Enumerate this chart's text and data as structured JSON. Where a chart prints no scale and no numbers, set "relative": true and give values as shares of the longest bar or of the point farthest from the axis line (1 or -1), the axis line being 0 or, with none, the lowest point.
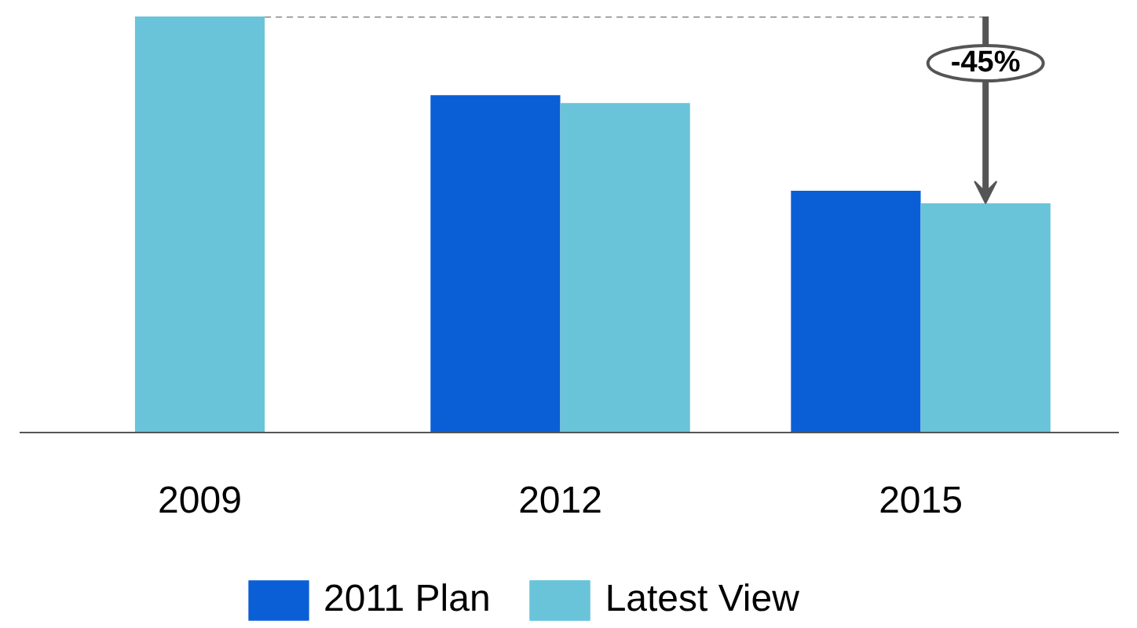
{
  "chart_data": {
    "type": "bar",
    "relative": true,
    "categories": [
      "2009",
      "2012",
      "2015"
    ],
    "series": [
      {
        "name": "2011 Plan",
        "color": "#0a5fd6",
        "values": [
          null,
          0.811,
          0.581
        ]
      },
      {
        "name": "Latest View",
        "color": "#6ac4d9",
        "values": [
          1,
          0.792,
          0.551
        ]
      }
    ],
    "annotations": [
      "-45%"
    ],
    "legend": "bottom",
    "grid": false
  }
}
